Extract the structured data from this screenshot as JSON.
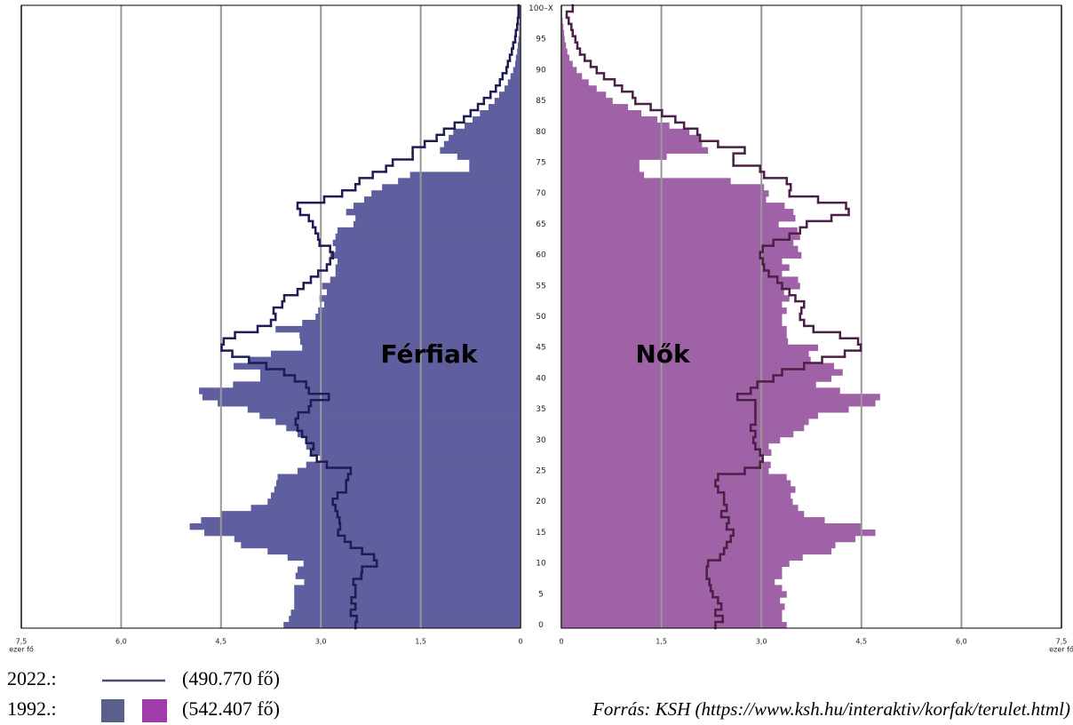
{
  "chart_data": {
    "type": "population_pyramid",
    "male_label": "Férfiak",
    "female_label": "Nők",
    "x_unit": "ezer fő",
    "source": "Forrás: KSH (https://www.ksh.hu/interaktiv/korfak/terulet.html)",
    "xlim": [
      0,
      7.5
    ],
    "xticks": [
      {
        "value": 7.5,
        "label": "7,5"
      },
      {
        "value": 6.0,
        "label": "6,0"
      },
      {
        "value": 4.5,
        "label": "4,5"
      },
      {
        "value": 3.0,
        "label": "3,0"
      },
      {
        "value": 1.5,
        "label": "1,5"
      },
      0
    ],
    "grid": true,
    "categories": [
      "0",
      null,
      null,
      null,
      null,
      "5",
      null,
      null,
      null,
      null,
      "10",
      null,
      null,
      null,
      null,
      "15",
      null,
      null,
      null,
      null,
      "20",
      null,
      null,
      null,
      null,
      "25",
      null,
      null,
      null,
      null,
      "30",
      null,
      null,
      null,
      null,
      "35",
      null,
      null,
      null,
      null,
      "40",
      null,
      null,
      null,
      null,
      "45",
      null,
      null,
      null,
      null,
      "50",
      null,
      null,
      null,
      null,
      "55",
      null,
      null,
      null,
      null,
      "60",
      null,
      null,
      null,
      null,
      "65",
      null,
      null,
      null,
      null,
      "70",
      null,
      null,
      null,
      null,
      "75",
      null,
      null,
      null,
      null,
      "80",
      null,
      null,
      null,
      null,
      "85",
      null,
      null,
      null,
      null,
      "90",
      null,
      null,
      null,
      null,
      "95",
      null,
      null,
      null,
      null,
      "100–X"
    ],
    "years": [
      {
        "label": "2022.:",
        "total": "(490.770 fő)",
        "style": "step",
        "male": {
          "color": "#1e1c52",
          "values": [
            2.48,
            2.46,
            2.55,
            2.48,
            2.54,
            2.48,
            2.48,
            2.51,
            2.39,
            2.38,
            2.16,
            2.2,
            2.38,
            2.55,
            2.64,
            2.74,
            2.71,
            2.72,
            2.75,
            2.78,
            2.82,
            2.75,
            2.62,
            2.62,
            2.59,
            2.55,
            2.91,
            3.06,
            3.15,
            3.11,
            3.22,
            3.28,
            3.35,
            3.38,
            3.34,
            3.18,
            3.15,
            2.88,
            3.18,
            3.22,
            3.39,
            3.55,
            3.82,
            4.08,
            4.33,
            4.49,
            4.46,
            4.29,
            3.95,
            3.75,
            3.68,
            3.71,
            3.58,
            3.55,
            3.35,
            3.26,
            3.15,
            3.04,
            2.91,
            2.86,
            2.82,
            2.86,
            3.02,
            3.04,
            3.08,
            3.12,
            3.18,
            3.31,
            3.35,
            2.95,
            2.68,
            2.48,
            2.42,
            2.22,
            2.02,
            1.92,
            1.62,
            1.62,
            1.44,
            1.26,
            1.15,
            0.99,
            0.85,
            0.75,
            0.64,
            0.55,
            0.45,
            0.37,
            0.31,
            0.27,
            0.21,
            0.19,
            0.16,
            0.13,
            0.11,
            0.08,
            0.07,
            0.05,
            0.04,
            0.03,
            0.03
          ]
        },
        "female": {
          "color": "#4a2046",
          "values": [
            2.31,
            2.42,
            2.31,
            2.4,
            2.35,
            2.27,
            2.24,
            2.22,
            2.18,
            2.18,
            2.2,
            2.38,
            2.44,
            2.48,
            2.54,
            2.58,
            2.48,
            2.51,
            2.4,
            2.48,
            2.44,
            2.44,
            2.35,
            2.31,
            2.35,
            2.75,
            2.98,
            3.02,
            2.98,
            2.91,
            2.88,
            2.91,
            2.84,
            2.91,
            2.91,
            2.91,
            2.91,
            2.64,
            2.84,
            2.94,
            3.18,
            3.31,
            3.64,
            3.91,
            4.25,
            4.49,
            4.45,
            4.18,
            3.78,
            3.64,
            3.58,
            3.6,
            3.64,
            3.51,
            3.42,
            3.31,
            3.24,
            3.11,
            3.04,
            3.02,
            2.98,
            3.02,
            3.18,
            3.42,
            3.58,
            3.68,
            4.05,
            4.31,
            4.27,
            3.85,
            3.42,
            3.44,
            3.38,
            3.04,
            2.98,
            2.58,
            2.58,
            2.75,
            2.35,
            2.08,
            2.04,
            1.84,
            1.71,
            1.51,
            1.34,
            1.11,
            1.07,
            0.91,
            0.8,
            0.64,
            0.53,
            0.44,
            0.35,
            0.28,
            0.24,
            0.21,
            0.17,
            0.15,
            0.11,
            0.08,
            0.17
          ]
        },
        "legend_color": "#4a5070"
      },
      {
        "label": "1992.:",
        "total": "(542.407 fő)",
        "style": "bar",
        "male": {
          "color": "#5f5f9f",
          "values": [
            3.56,
            3.48,
            3.45,
            3.4,
            3.4,
            3.4,
            3.4,
            3.25,
            3.38,
            3.35,
            3.26,
            3.5,
            3.8,
            4.2,
            4.3,
            4.75,
            4.97,
            4.8,
            4.5,
            4.05,
            3.8,
            3.75,
            3.7,
            3.67,
            3.65,
            3.35,
            3.22,
            3.0,
            3.15,
            3.22,
            3.22,
            3.35,
            3.52,
            3.68,
            3.92,
            4.1,
            4.55,
            4.78,
            4.83,
            4.32,
            3.91,
            3.91,
            4.31,
            4.08,
            3.75,
            3.28,
            3.31,
            3.32,
            3.68,
            3.28,
            3.08,
            3.04,
            2.95,
            3.02,
            2.91,
            2.98,
            2.86,
            2.78,
            2.78,
            2.75,
            2.86,
            2.78,
            2.82,
            2.78,
            2.75,
            2.51,
            2.48,
            2.62,
            2.51,
            2.35,
            2.24,
            2.08,
            1.84,
            1.66,
            0.77,
            0.77,
            0.95,
            1.21,
            1.15,
            1.08,
            1.01,
            0.84,
            0.72,
            0.61,
            0.48,
            0.39,
            0.32,
            0.24,
            0.19,
            0.15,
            0.11,
            0.08,
            0.07,
            0.05,
            0.04,
            0.03,
            0.02,
            0.02,
            0.01,
            0.01,
            0.01
          ]
        },
        "female": {
          "color": "#a062a6",
          "values": [
            3.38,
            3.31,
            3.31,
            3.35,
            3.28,
            3.38,
            3.31,
            3.2,
            3.31,
            3.31,
            3.42,
            3.62,
            4.05,
            4.11,
            4.41,
            4.71,
            4.49,
            3.95,
            3.64,
            3.55,
            3.47,
            3.44,
            3.51,
            3.44,
            3.38,
            3.11,
            3.14,
            3.02,
            3.15,
            3.11,
            3.28,
            3.48,
            3.64,
            3.71,
            3.85,
            4.31,
            4.71,
            4.78,
            4.18,
            3.82,
            4.05,
            4.22,
            4.09,
            3.74,
            3.71,
            3.85,
            3.4,
            3.38,
            3.38,
            3.31,
            3.31,
            3.38,
            3.31,
            3.42,
            3.34,
            3.58,
            3.55,
            3.31,
            3.42,
            3.31,
            3.6,
            3.55,
            3.48,
            3.58,
            3.54,
            3.26,
            3.51,
            3.48,
            3.35,
            3.07,
            3.11,
            3.04,
            2.54,
            1.24,
            1.17,
            1.17,
            1.58,
            2.2,
            2.11,
            2.07,
            1.92,
            1.62,
            1.44,
            1.2,
            1.0,
            0.77,
            0.67,
            0.53,
            0.41,
            0.31,
            0.23,
            0.17,
            0.12,
            0.09,
            0.07,
            0.05,
            0.04,
            0.03,
            0.02,
            0.01,
            0.01
          ]
        },
        "legend_colors": [
          "#5a5f8a",
          "#a23ca8"
        ]
      }
    ]
  }
}
